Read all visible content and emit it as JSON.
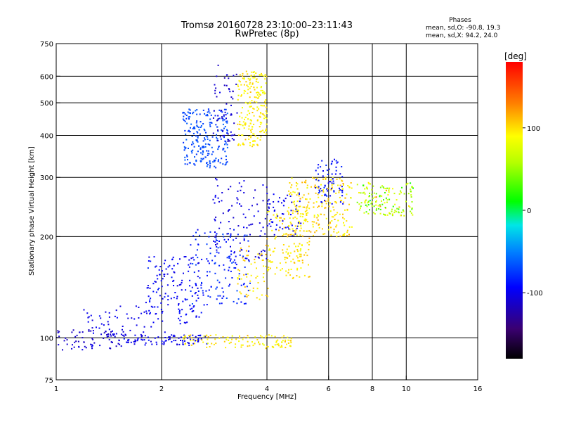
{
  "chart_data": {
    "type": "scatter",
    "title": "Tromsø 20160728 23:10:00–23:11:43",
    "subtitle": "RwPretec (8p)",
    "xlabel": "Frequency [MHz]",
    "ylabel": "Stationary phase Virtual Height [km]",
    "x_scale": "log",
    "y_scale": "log",
    "xlim": [
      1,
      16
    ],
    "ylim": [
      75,
      750
    ],
    "x_ticks": [
      {
        "value": 1,
        "label": "1"
      },
      {
        "value": 2,
        "label": "2"
      },
      {
        "value": 4,
        "label": "4"
      },
      {
        "value": 6,
        "label": "6"
      },
      {
        "value": 8,
        "label": "8"
      },
      {
        "value": 10,
        "label": "10"
      },
      {
        "value": 16,
        "label": "16"
      }
    ],
    "y_ticks": [
      {
        "value": 75,
        "label": "75"
      },
      {
        "value": 100,
        "label": "100"
      },
      {
        "value": 200,
        "label": "200"
      },
      {
        "value": 300,
        "label": "300"
      },
      {
        "value": 400,
        "label": "400"
      },
      {
        "value": 500,
        "label": "500"
      },
      {
        "value": 600,
        "label": "600"
      },
      {
        "value": 750,
        "label": "750"
      }
    ],
    "grid": true,
    "stats": {
      "heading": "Phases",
      "line_o": "mean, sd,O: -90.8, 19.3",
      "line_x": "mean, sd,X:  94.2, 24.0"
    },
    "colorbar": {
      "label": "[deg]",
      "range": [
        -180,
        180
      ],
      "ticks": [
        {
          "value": 100,
          "label": "100"
        },
        {
          "value": 0,
          "label": "0"
        },
        {
          "value": -100,
          "label": "-100"
        }
      ]
    },
    "clusters": [
      {
        "f": [
          1.0,
          1.55
        ],
        "h": [
          92,
          106
        ],
        "phase": -110,
        "spread": 15,
        "n": 70
      },
      {
        "f": [
          1.55,
          2.7
        ],
        "h": [
          95,
          102
        ],
        "phase": -100,
        "spread": 20,
        "n": 90
      },
      {
        "f": [
          2.3,
          4.7
        ],
        "h": [
          93,
          102
        ],
        "phase": 95,
        "spread": 25,
        "n": 110
      },
      {
        "f": [
          1.2,
          2.1
        ],
        "h": [
          100,
          125
        ],
        "phase": -100,
        "spread": 12,
        "n": 60
      },
      {
        "f": [
          1.8,
          2.6
        ],
        "h": [
          110,
          175
        ],
        "phase": -95,
        "spread": 18,
        "n": 140
      },
      {
        "f": [
          2.4,
          3.6
        ],
        "h": [
          125,
          210
        ],
        "phase": -85,
        "spread": 22,
        "n": 150
      },
      {
        "f": [
          2.8,
          4.0
        ],
        "h": [
          170,
          300
        ],
        "phase": -105,
        "spread": 15,
        "n": 90
      },
      {
        "f": [
          2.3,
          3.1
        ],
        "h": [
          320,
          480
        ],
        "phase": -70,
        "spread": 15,
        "n": 230
      },
      {
        "f": [
          2.8,
          3.3
        ],
        "h": [
          380,
          650
        ],
        "phase": -110,
        "spread": 15,
        "n": 60
      },
      {
        "f": [
          3.3,
          4.0
        ],
        "h": [
          370,
          620
        ],
        "phase": 95,
        "spread": 22,
        "n": 200
      },
      {
        "f": [
          3.3,
          4.1
        ],
        "h": [
          130,
          190
        ],
        "phase": 100,
        "spread": 25,
        "n": 60
      },
      {
        "f": [
          4.0,
          5.3
        ],
        "h": [
          150,
          240
        ],
        "phase": 100,
        "spread": 25,
        "n": 150
      },
      {
        "f": [
          4.0,
          5.0
        ],
        "h": [
          200,
          270
        ],
        "phase": -100,
        "spread": 15,
        "n": 60
      },
      {
        "f": [
          4.6,
          7.0
        ],
        "h": [
          200,
          300
        ],
        "phase": 100,
        "spread": 30,
        "n": 220
      },
      {
        "f": [
          5.5,
          6.6
        ],
        "h": [
          250,
          340
        ],
        "phase": -90,
        "spread": 20,
        "n": 70
      },
      {
        "f": [
          7.2,
          10.5
        ],
        "h": [
          230,
          290
        ],
        "phase": 60,
        "spread": 80,
        "n": 150
      }
    ]
  }
}
